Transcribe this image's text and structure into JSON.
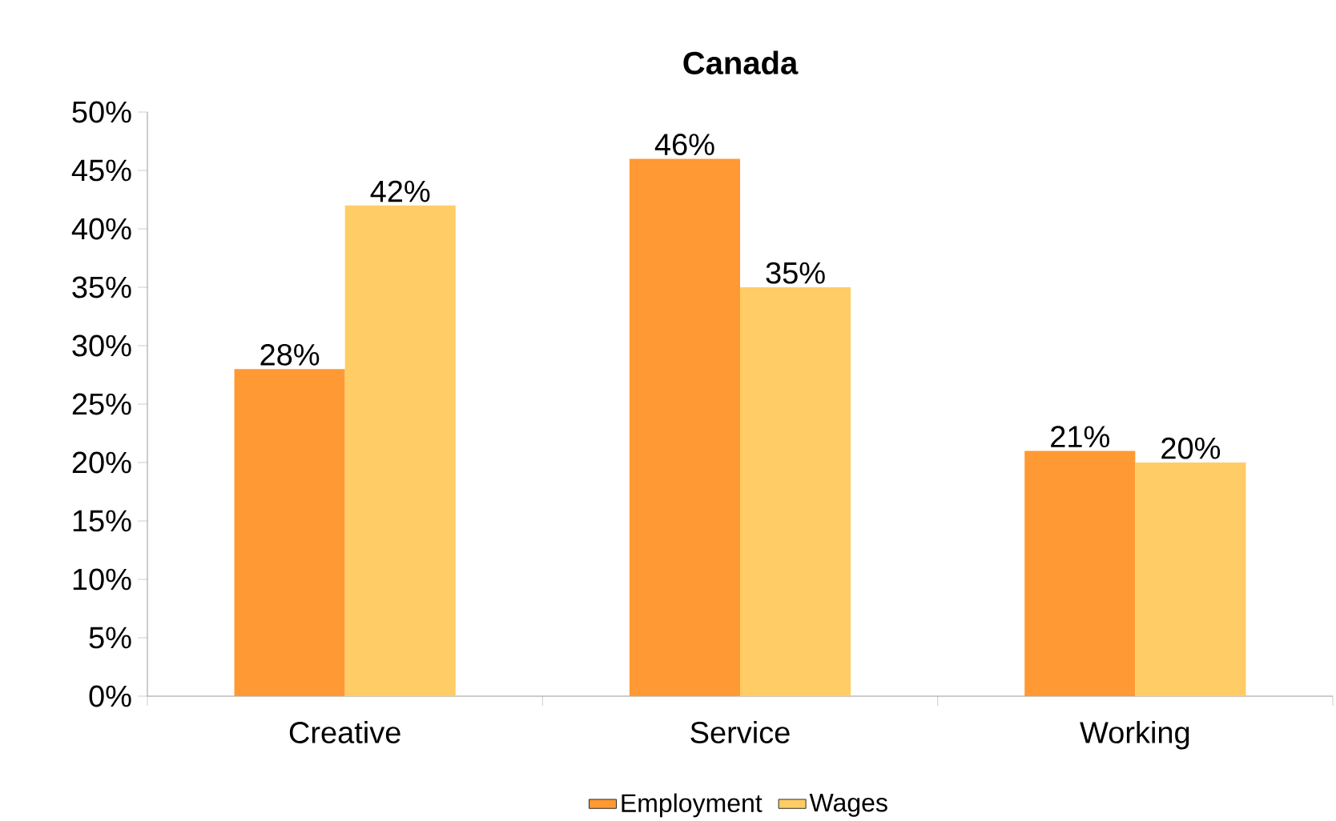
{
  "chart_data": {
    "type": "bar",
    "title": "Canada",
    "categories": [
      "Creative",
      "Service",
      "Working"
    ],
    "series": [
      {
        "name": "Employment",
        "color": "#ff9933",
        "values": [
          28,
          46,
          21
        ],
        "value_labels": [
          "28%",
          "46%",
          "21%"
        ]
      },
      {
        "name": "Wages",
        "color": "#ffcc66",
        "values": [
          42,
          35,
          20
        ],
        "value_labels": [
          "42%",
          "35%",
          "20%"
        ]
      }
    ],
    "ylim": [
      0,
      50
    ],
    "yticks": [
      {
        "value": 0,
        "label": "0%"
      },
      {
        "value": 5,
        "label": "5%"
      },
      {
        "value": 10,
        "label": "10%"
      },
      {
        "value": 15,
        "label": "15%"
      },
      {
        "value": 20,
        "label": "20%"
      },
      {
        "value": 25,
        "label": "25%"
      },
      {
        "value": 30,
        "label": "30%"
      },
      {
        "value": 35,
        "label": "35%"
      },
      {
        "value": 40,
        "label": "40%"
      },
      {
        "value": 45,
        "label": "45%"
      },
      {
        "value": 50,
        "label": "50%"
      }
    ],
    "grid": false,
    "legend": "bottom"
  }
}
